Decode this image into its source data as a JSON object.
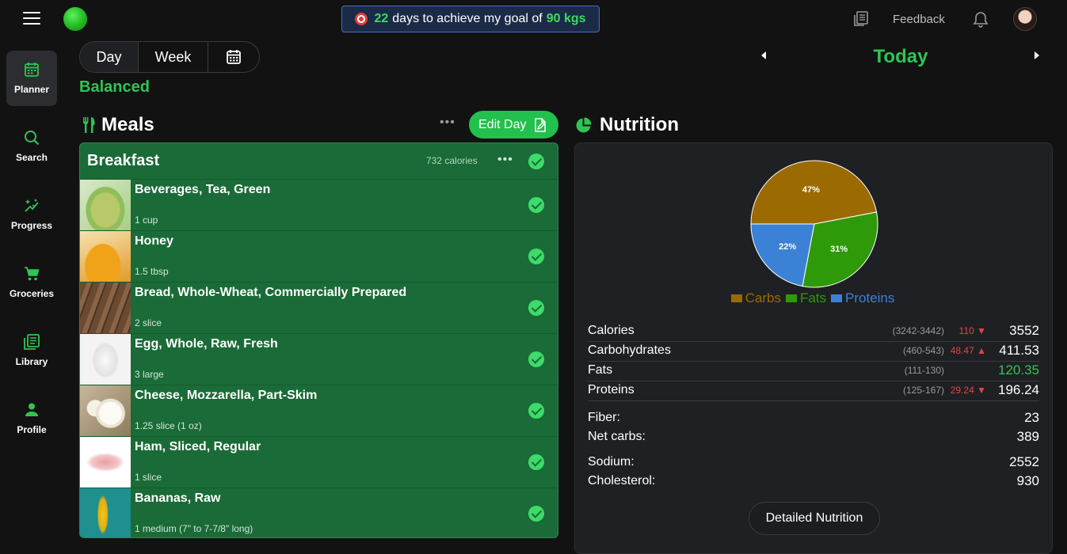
{
  "topbar": {
    "goal_days": "22",
    "goal_text_1": "days to achieve my goal of",
    "goal_weight": "90 kgs",
    "feedback_label": "Feedback"
  },
  "sidebar": {
    "items": [
      {
        "label": "Planner",
        "icon": "calendar-icon",
        "active": true
      },
      {
        "label": "Search",
        "icon": "search-icon"
      },
      {
        "label": "Progress",
        "icon": "sparkle-icon"
      },
      {
        "label": "Groceries",
        "icon": "cart-icon"
      },
      {
        "label": "Library",
        "icon": "library-icon"
      },
      {
        "label": "Profile",
        "icon": "person-icon"
      }
    ]
  },
  "view_toggle": {
    "day": "Day",
    "week": "Week",
    "selected": "Day"
  },
  "plan_type": "Balanced",
  "date_nav": {
    "label": "Today"
  },
  "meals": {
    "title": "Meals",
    "edit_label": "Edit Day",
    "breakfast": {
      "name": "Breakfast",
      "calories": "732 calories",
      "foods": [
        {
          "name": "Beverages, Tea, Green",
          "qty": "1 cup"
        },
        {
          "name": "Honey",
          "qty": "1.5 tbsp"
        },
        {
          "name": "Bread, Whole-Wheat, Commercially Prepared",
          "qty": "2 slice"
        },
        {
          "name": "Egg, Whole, Raw, Fresh",
          "qty": "3 large"
        },
        {
          "name": "Cheese, Mozzarella, Part-Skim",
          "qty": "1.25 slice (1 oz)"
        },
        {
          "name": "Ham, Sliced, Regular",
          "qty": "1 slice"
        },
        {
          "name": "Bananas, Raw",
          "qty": "1 medium (7\" to 7-7/8\" long)"
        }
      ]
    }
  },
  "nutrition": {
    "title": "Nutrition",
    "pie": [
      {
        "name": "Carbs",
        "percent": 47,
        "label": "47%",
        "color": "#9b6a00"
      },
      {
        "name": "Fats",
        "percent": 31,
        "label": "31%",
        "color": "#2e9a0a"
      },
      {
        "name": "Proteins",
        "percent": 22,
        "label": "22%",
        "color": "#3b82d6"
      }
    ],
    "rows": [
      {
        "label": "Calories",
        "range": "(3242-3442)",
        "diff": "110 ▼",
        "value": "3552"
      },
      {
        "label": "Carbohydrates",
        "range": "(460-543)",
        "diff": "48.47 ▲",
        "value": "411.53"
      },
      {
        "label": "Fats",
        "range": "(111-130)",
        "diff": "",
        "value": "120.35"
      },
      {
        "label": "Proteins",
        "range": "(125-167)",
        "diff": "29.24 ▼",
        "value": "196.24"
      }
    ],
    "extra": [
      {
        "label": "Fiber:",
        "value": "23"
      },
      {
        "label": "Net carbs:",
        "value": "389"
      },
      {
        "label": "Sodium:",
        "value": "2552"
      },
      {
        "label": "Cholesterol:",
        "value": "930"
      }
    ],
    "detail_label": "Detailed Nutrition"
  }
}
